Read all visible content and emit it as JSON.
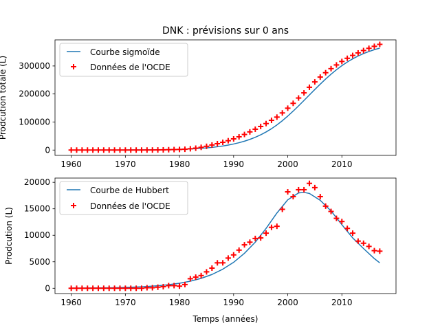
{
  "colors": {
    "curve": "#1f77b4",
    "data": "#ff0000",
    "axis": "#000000",
    "legend_border": "#cccccc"
  },
  "chart_data": [
    {
      "type": "line",
      "title": "DNK : prévisions sur 0 ans",
      "xlabel": "",
      "ylabel": "Prodcution totale (L)",
      "xlim": [
        1957,
        2020
      ],
      "ylim": [
        -19000,
        393000
      ],
      "xticks": [
        1960,
        1970,
        1980,
        1990,
        2000,
        2010
      ],
      "xtick_labels": [
        "1960",
        "1970",
        "1980",
        "1990",
        "2000",
        "2010"
      ],
      "yticks": [
        0,
        100000,
        200000,
        300000
      ],
      "ytick_labels": [
        "0",
        "100000",
        "200000",
        "300000"
      ],
      "legend_position": "upper-left",
      "grid": false,
      "series": [
        {
          "name": "Courbe sigmoïde",
          "kind": "line",
          "color": "#1f77b4",
          "x": [
            1960,
            1961,
            1962,
            1963,
            1964,
            1965,
            1966,
            1967,
            1968,
            1969,
            1970,
            1971,
            1972,
            1973,
            1974,
            1975,
            1976,
            1977,
            1978,
            1979,
            1980,
            1981,
            1982,
            1983,
            1984,
            1985,
            1986,
            1987,
            1988,
            1989,
            1990,
            1991,
            1992,
            1993,
            1994,
            1995,
            1996,
            1997,
            1998,
            1999,
            2000,
            2001,
            2002,
            2003,
            2004,
            2005,
            2006,
            2007,
            2008,
            2009,
            2010,
            2011,
            2012,
            2013,
            2014,
            2015,
            2016,
            2017
          ],
          "y": [
            100,
            100,
            120,
            140,
            160,
            190,
            220,
            260,
            300,
            360,
            420,
            500,
            600,
            720,
            860,
            1050,
            1250,
            1500,
            1800,
            2200,
            2700,
            3300,
            4000,
            5000,
            6300,
            7800,
            9600,
            11800,
            14500,
            17700,
            21600,
            26200,
            31600,
            38000,
            45500,
            54300,
            64500,
            76200,
            89600,
            104600,
            121100,
            138900,
            157600,
            176900,
            196500,
            216000,
            235000,
            253300,
            270500,
            286500,
            301000,
            314000,
            325400,
            335400,
            344000,
            351500,
            358000,
            363500
          ]
        },
        {
          "name": "Données de l'OCDE",
          "kind": "scatter",
          "marker": "+",
          "color": "#ff0000",
          "x": [
            1960,
            1961,
            1962,
            1963,
            1964,
            1965,
            1966,
            1967,
            1968,
            1969,
            1970,
            1971,
            1972,
            1973,
            1974,
            1975,
            1976,
            1977,
            1978,
            1979,
            1980,
            1981,
            1982,
            1983,
            1984,
            1985,
            1986,
            1987,
            1988,
            1989,
            1990,
            1991,
            1992,
            1993,
            1994,
            1995,
            1996,
            1997,
            1998,
            1999,
            2000,
            2001,
            2002,
            2003,
            2004,
            2005,
            2006,
            2007,
            2008,
            2009,
            2010,
            2011,
            2012,
            2013,
            2014,
            2015,
            2016,
            2017
          ],
          "y": [
            0,
            0,
            0,
            0,
            0,
            0,
            0,
            0,
            0,
            0,
            0,
            0,
            0,
            0,
            100,
            200,
            400,
            700,
            1200,
            1700,
            2100,
            2800,
            4600,
            6700,
            9700,
            13300,
            18000,
            22700,
            27600,
            33300,
            39900,
            47200,
            55600,
            64800,
            74300,
            84100,
            94500,
            106000,
            117500,
            132400,
            149300,
            166700,
            185600,
            204000,
            224000,
            243100,
            260300,
            275900,
            290400,
            303600,
            316000,
            327300,
            337600,
            346500,
            355000,
            362900,
            370000,
            377000
          ]
        }
      ]
    },
    {
      "type": "line",
      "title": "",
      "xlabel": "Temps (années)",
      "ylabel": "Prodcution (L)",
      "xlim": [
        1957,
        2020
      ],
      "ylim": [
        -1000,
        20800
      ],
      "xticks": [
        1960,
        1970,
        1980,
        1990,
        2000,
        2010
      ],
      "xtick_labels": [
        "1960",
        "1970",
        "1980",
        "1990",
        "2000",
        "2010"
      ],
      "yticks": [
        0,
        5000,
        10000,
        15000,
        20000
      ],
      "ytick_labels": [
        "0",
        "5000",
        "10000",
        "15000",
        "20000"
      ],
      "legend_position": "upper-left",
      "grid": false,
      "series": [
        {
          "name": "Courbe de Hubbert",
          "kind": "line",
          "color": "#1f77b4",
          "x": [
            1960,
            1962,
            1964,
            1966,
            1968,
            1970,
            1972,
            1974,
            1976,
            1978,
            1980,
            1982,
            1984,
            1986,
            1988,
            1990,
            1992,
            1994,
            1996,
            1998,
            2000,
            2002,
            2003,
            2004,
            2006,
            2008,
            2010,
            2012,
            2014,
            2016,
            2017
          ],
          "y": [
            30,
            40,
            60,
            80,
            110,
            160,
            230,
            330,
            470,
            670,
            950,
            1340,
            1870,
            2600,
            3600,
            4900,
            6600,
            8700,
            11300,
            14200,
            16700,
            18000,
            18100,
            17900,
            16600,
            14600,
            12000,
            9500,
            7500,
            5600,
            4800
          ]
        },
        {
          "name": "Données de l'OCDE",
          "kind": "scatter",
          "marker": "+",
          "color": "#ff0000",
          "x": [
            1960,
            1961,
            1962,
            1963,
            1964,
            1965,
            1966,
            1967,
            1968,
            1969,
            1970,
            1971,
            1972,
            1973,
            1974,
            1975,
            1976,
            1977,
            1978,
            1979,
            1980,
            1981,
            1982,
            1983,
            1984,
            1985,
            1986,
            1987,
            1988,
            1989,
            1990,
            1991,
            1992,
            1993,
            1994,
            1995,
            1996,
            1997,
            1998,
            1999,
            2000,
            2001,
            2002,
            2003,
            2004,
            2005,
            2006,
            2007,
            2008,
            2009,
            2010,
            2011,
            2012,
            2013,
            2014,
            2015,
            2016,
            2017
          ],
          "y": [
            0,
            0,
            0,
            0,
            0,
            0,
            0,
            0,
            0,
            0,
            0,
            0,
            0,
            0,
            100,
            100,
            200,
            300,
            500,
            500,
            400,
            700,
            1800,
            2100,
            2400,
            3100,
            3800,
            4800,
            4800,
            5700,
            6300,
            7200,
            8200,
            8700,
            9400,
            9500,
            10400,
            11500,
            11700,
            14900,
            18200,
            17300,
            18600,
            18600,
            19800,
            19000,
            17300,
            15500,
            14500,
            13200,
            12600,
            11300,
            10400,
            8900,
            8500,
            7900,
            7100,
            7000
          ]
        }
      ]
    }
  ]
}
